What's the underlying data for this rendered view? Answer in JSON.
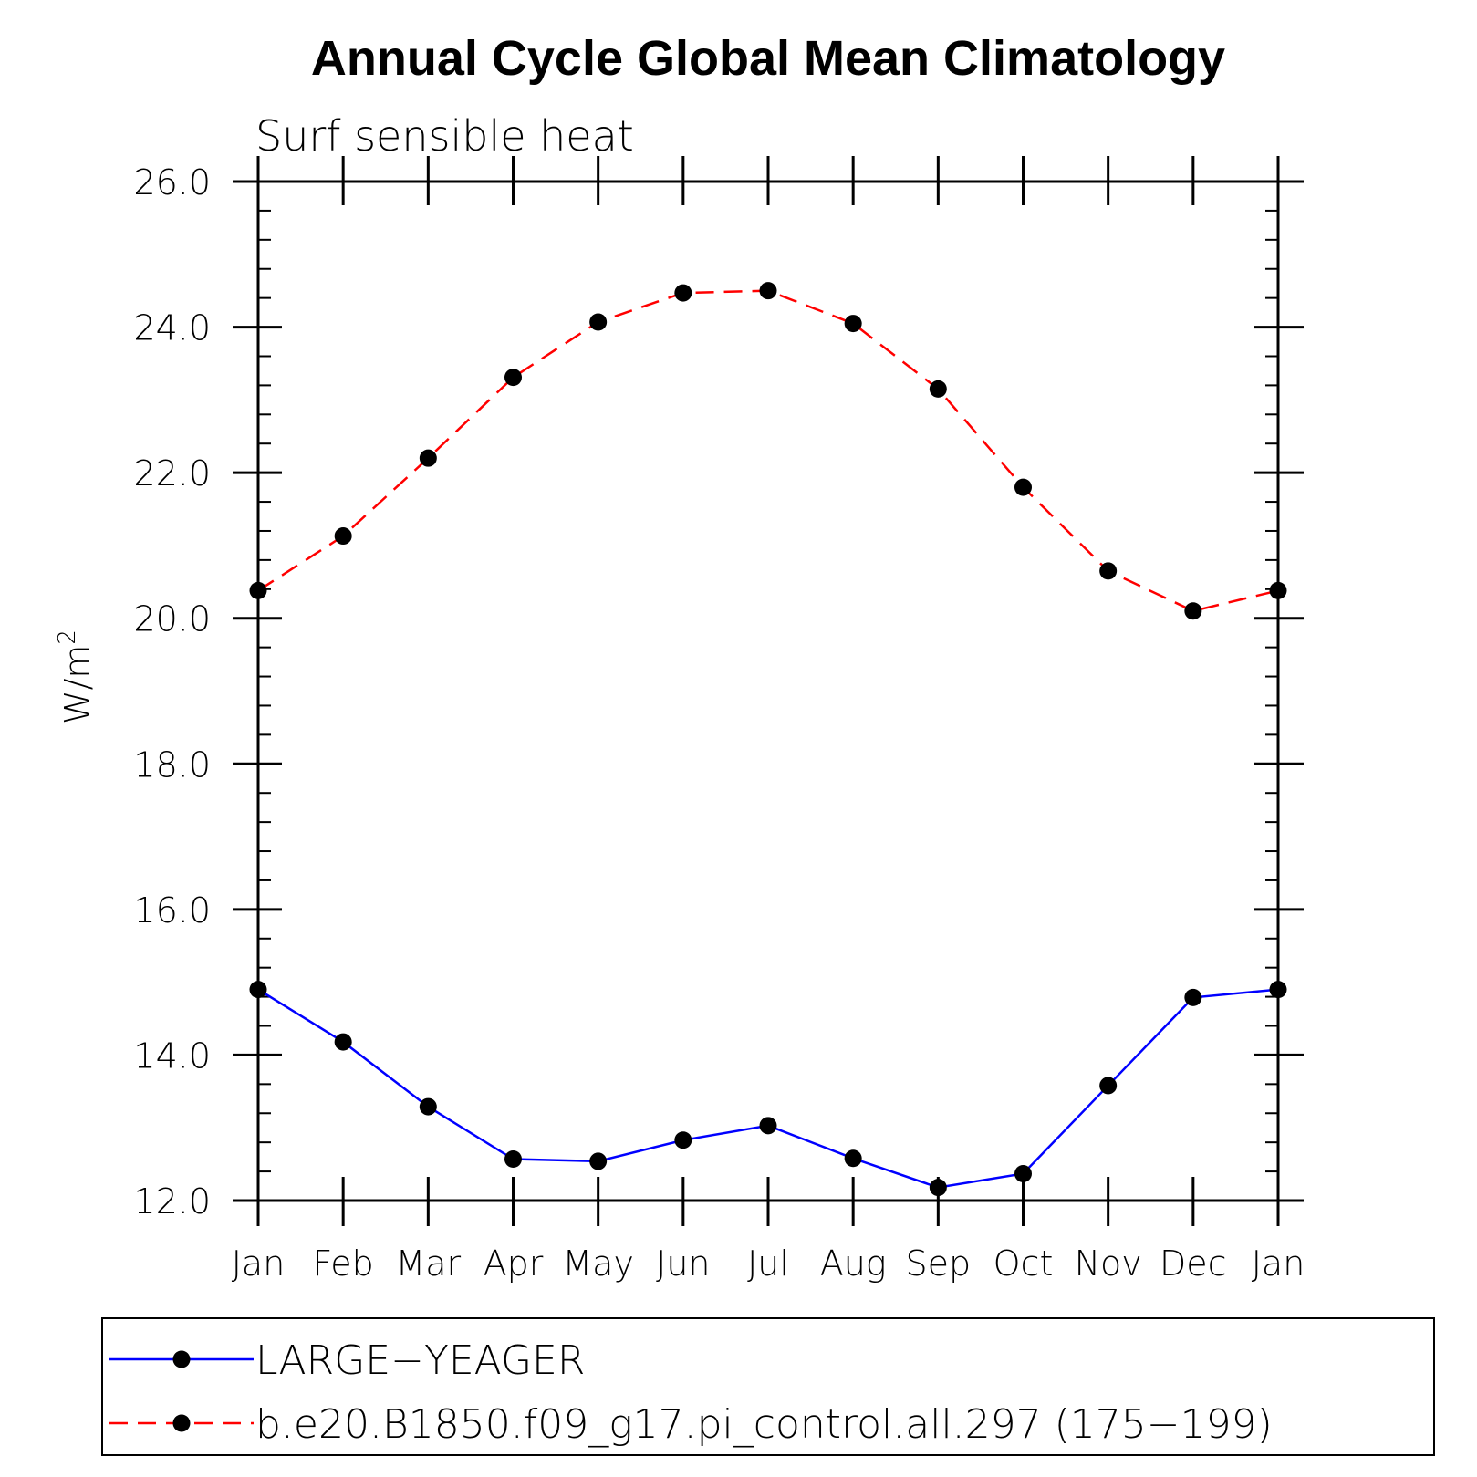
{
  "chart_data": {
    "type": "line",
    "title": "Annual Cycle Global Mean Climatology",
    "subtitle": "Surf sensible heat",
    "ylabel": "W/m",
    "ylabel_sup": "2",
    "ylim": [
      12.0,
      26.0
    ],
    "yticks": [
      "12.0",
      "14.0",
      "16.0",
      "18.0",
      "20.0",
      "22.0",
      "24.0",
      "26.0"
    ],
    "categories": [
      "Jan",
      "Feb",
      "Mar",
      "Apr",
      "May",
      "Jun",
      "Jul",
      "Aug",
      "Sep",
      "Oct",
      "Nov",
      "Dec",
      "Jan"
    ],
    "legend_position": "bottom",
    "series": [
      {
        "name": "LARGE−YEAGER",
        "color": "#0000ff",
        "style": "solid",
        "marker": "filled-circle",
        "values": [
          14.9,
          14.18,
          13.29,
          12.57,
          12.54,
          12.83,
          13.03,
          12.58,
          12.18,
          12.37,
          13.58,
          14.79,
          14.9
        ]
      },
      {
        "name": "b.e20.B1850.f09_g17.pi_control.all.297 (175−199)",
        "color": "#ff0000",
        "style": "dashed",
        "marker": "filled-circle",
        "values": [
          20.38,
          21.13,
          22.2,
          23.31,
          24.07,
          24.47,
          24.5,
          24.05,
          23.15,
          21.8,
          20.65,
          20.1,
          20.38
        ]
      }
    ]
  }
}
